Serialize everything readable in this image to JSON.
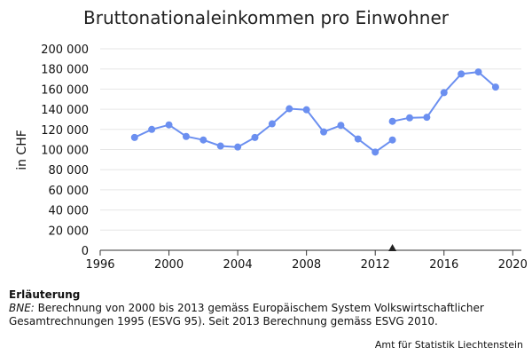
{
  "chart_data": {
    "type": "line",
    "title": "Bruttonationaleinkommen pro Einwohner",
    "xlabel": "",
    "ylabel": "in CHF",
    "xlim": [
      1996,
      2020.5
    ],
    "ylim": [
      0,
      200000
    ],
    "x_ticks": [
      1996,
      2000,
      2004,
      2008,
      2012,
      2016,
      2020
    ],
    "x_tick_labels": [
      "1996",
      "2000",
      "2004",
      "2008",
      "2012",
      "2016",
      "2020"
    ],
    "y_ticks": [
      0,
      20000,
      40000,
      60000,
      80000,
      100000,
      120000,
      140000,
      160000,
      180000,
      200000
    ],
    "y_tick_labels": [
      "0",
      "20 000",
      "40 000",
      "60 000",
      "80 000",
      "100 000",
      "120 000",
      "140 000",
      "160 000",
      "180 000",
      "200 000"
    ],
    "grid": "horizontal",
    "legend": "none",
    "series": [
      {
        "color": "#6b8ff0",
        "points": [
          {
            "x": 1998,
            "y": 112000
          },
          {
            "x": 1999,
            "y": 120000
          },
          {
            "x": 2000,
            "y": 124500
          },
          {
            "x": 2001,
            "y": 113000
          },
          {
            "x": 2002,
            "y": 109500
          },
          {
            "x": 2003,
            "y": 103500
          },
          {
            "x": 2004,
            "y": 102500
          },
          {
            "x": 2005,
            "y": 112000
          },
          {
            "x": 2006,
            "y": 125500
          },
          {
            "x": 2007,
            "y": 140500
          },
          {
            "x": 2008,
            "y": 139500
          },
          {
            "x": 2009,
            "y": 117500
          },
          {
            "x": 2010,
            "y": 124000
          },
          {
            "x": 2011,
            "y": 110500
          },
          {
            "x": 2012,
            "y": 97500
          },
          {
            "x": 2013,
            "y": 109500
          }
        ]
      },
      {
        "color": "#6b8ff0",
        "points": [
          {
            "x": 2013,
            "y": 128000
          },
          {
            "x": 2014,
            "y": 131500
          },
          {
            "x": 2015,
            "y": 132000
          },
          {
            "x": 2016,
            "y": 156500
          },
          {
            "x": 2017,
            "y": 175000
          },
          {
            "x": 2018,
            "y": 177000
          },
          {
            "x": 2019,
            "y": 162000
          }
        ]
      }
    ],
    "annotations": [
      {
        "type": "triangle-marker",
        "x": 2013,
        "y": 0,
        "color": "#222222"
      }
    ]
  },
  "note": {
    "heading": "Erläuterung",
    "term": "BNE:",
    "text": " Berechnung von 2000 bis 2013 gemäss Europäischem System Volkswirtschaftlicher Gesamtrechnungen 1995 (ESVG 95). Seit 2013 Berechnung gemäss ESVG 2010."
  },
  "source": "Amt für Statistik Liechtenstein"
}
